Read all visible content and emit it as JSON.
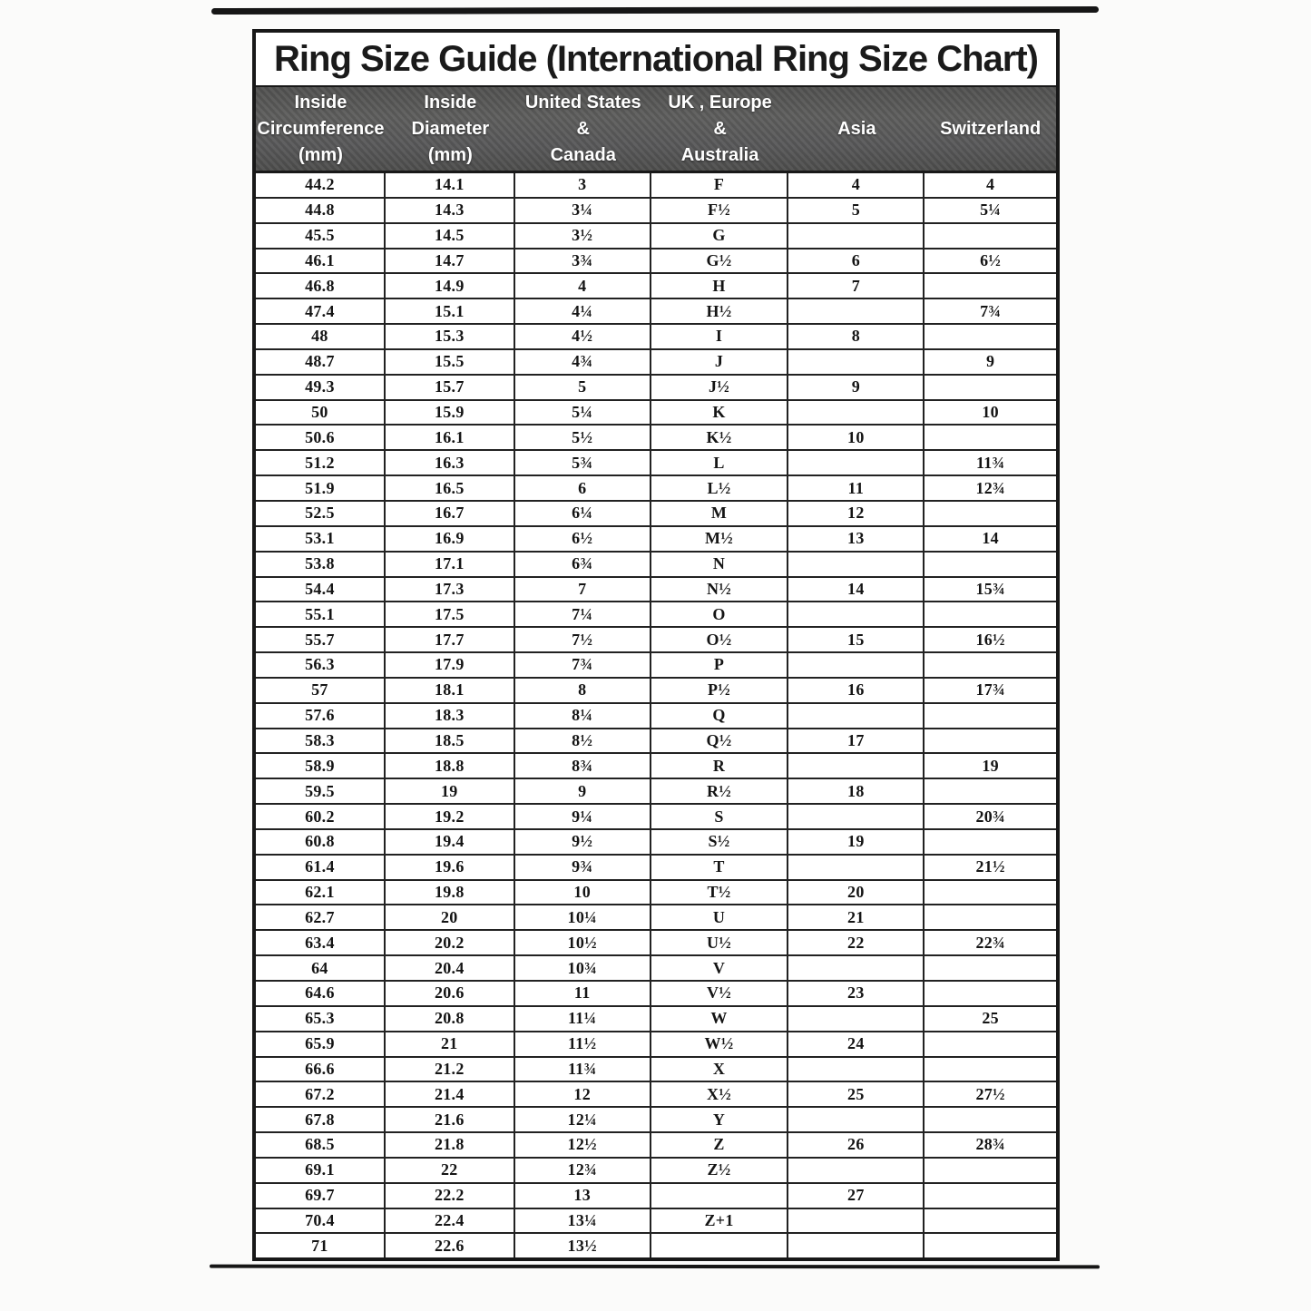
{
  "page": {
    "title": "Ring Size Guide (International Ring Size Chart)"
  },
  "colors": {
    "header_bg": "#59595a",
    "header_text": "#ffffff",
    "line": "#181818",
    "paper": "#ffffff"
  },
  "table": {
    "columns": [
      "Inside\nCircumference\n(mm)",
      "Inside\nDiameter\n(mm)",
      "United States\n&\nCanada",
      "UK , Europe\n&\nAustralia",
      "Asia",
      "Switzerland"
    ],
    "rows": [
      [
        "44.2",
        "14.1",
        "3",
        "F",
        "4",
        "4"
      ],
      [
        "44.8",
        "14.3",
        "3¼",
        "F½",
        "5",
        "5¼"
      ],
      [
        "45.5",
        "14.5",
        "3½",
        "G",
        "",
        ""
      ],
      [
        "46.1",
        "14.7",
        "3¾",
        "G½",
        "6",
        "6½"
      ],
      [
        "46.8",
        "14.9",
        "4",
        "H",
        "7",
        ""
      ],
      [
        "47.4",
        "15.1",
        "4¼",
        "H½",
        "",
        "7¾"
      ],
      [
        "48",
        "15.3",
        "4½",
        "I",
        "8",
        ""
      ],
      [
        "48.7",
        "15.5",
        "4¾",
        "J",
        "",
        "9"
      ],
      [
        "49.3",
        "15.7",
        "5",
        "J½",
        "9",
        ""
      ],
      [
        "50",
        "15.9",
        "5¼",
        "K",
        "",
        "10"
      ],
      [
        "50.6",
        "16.1",
        "5½",
        "K½",
        "10",
        ""
      ],
      [
        "51.2",
        "16.3",
        "5¾",
        "L",
        "",
        "11¾"
      ],
      [
        "51.9",
        "16.5",
        "6",
        "L½",
        "11",
        "12¾"
      ],
      [
        "52.5",
        "16.7",
        "6¼",
        "M",
        "12",
        ""
      ],
      [
        "53.1",
        "16.9",
        "6½",
        "M½",
        "13",
        "14"
      ],
      [
        "53.8",
        "17.1",
        "6¾",
        "N",
        "",
        ""
      ],
      [
        "54.4",
        "17.3",
        "7",
        "N½",
        "14",
        "15¾"
      ],
      [
        "55.1",
        "17.5",
        "7¼",
        "O",
        "",
        ""
      ],
      [
        "55.7",
        "17.7",
        "7½",
        "O½",
        "15",
        "16½"
      ],
      [
        "56.3",
        "17.9",
        "7¾",
        "P",
        "",
        ""
      ],
      [
        "57",
        "18.1",
        "8",
        "P½",
        "16",
        "17¾"
      ],
      [
        "57.6",
        "18.3",
        "8¼",
        "Q",
        "",
        ""
      ],
      [
        "58.3",
        "18.5",
        "8½",
        "Q½",
        "17",
        ""
      ],
      [
        "58.9",
        "18.8",
        "8¾",
        "R",
        "",
        "19"
      ],
      [
        "59.5",
        "19",
        "9",
        "R½",
        "18",
        ""
      ],
      [
        "60.2",
        "19.2",
        "9¼",
        "S",
        "",
        "20¾"
      ],
      [
        "60.8",
        "19.4",
        "9½",
        "S½",
        "19",
        ""
      ],
      [
        "61.4",
        "19.6",
        "9¾",
        "T",
        "",
        "21½"
      ],
      [
        "62.1",
        "19.8",
        "10",
        "T½",
        "20",
        ""
      ],
      [
        "62.7",
        "20",
        "10¼",
        "U",
        "21",
        ""
      ],
      [
        "63.4",
        "20.2",
        "10½",
        "U½",
        "22",
        "22¾"
      ],
      [
        "64",
        "20.4",
        "10¾",
        "V",
        "",
        ""
      ],
      [
        "64.6",
        "20.6",
        "11",
        "V½",
        "23",
        ""
      ],
      [
        "65.3",
        "20.8",
        "11¼",
        "W",
        "",
        "25"
      ],
      [
        "65.9",
        "21",
        "11½",
        "W½",
        "24",
        ""
      ],
      [
        "66.6",
        "21.2",
        "11¾",
        "X",
        "",
        ""
      ],
      [
        "67.2",
        "21.4",
        "12",
        "X½",
        "25",
        "27½"
      ],
      [
        "67.8",
        "21.6",
        "12¼",
        "Y",
        "",
        ""
      ],
      [
        "68.5",
        "21.8",
        "12½",
        "Z",
        "26",
        "28¾"
      ],
      [
        "69.1",
        "22",
        "12¾",
        "Z½",
        "",
        ""
      ],
      [
        "69.7",
        "22.2",
        "13",
        "",
        "27",
        ""
      ],
      [
        "70.4",
        "22.4",
        "13¼",
        "Z+1",
        "",
        ""
      ],
      [
        "71",
        "22.6",
        "13½",
        "",
        "",
        ""
      ]
    ]
  }
}
